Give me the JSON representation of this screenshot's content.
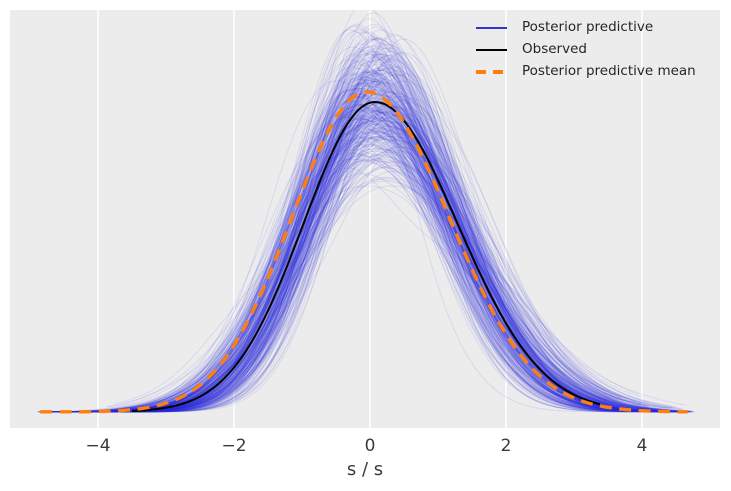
{
  "figure": {
    "kind": "posterior-predictive-check-plot",
    "background_color": "#ffffff",
    "plot_background_color": "#ececec",
    "gridline_color": "#ffffff",
    "tick_text_color": "#3b3b3b",
    "legend_text_color": "#262626",
    "xlabel": "s / s",
    "xtick_labels": [
      "−4",
      "−2",
      "0",
      "2",
      "4"
    ],
    "legend": [
      {
        "label": "Posterior predictive",
        "color": "#3434d0",
        "style": "solid"
      },
      {
        "label": "Observed",
        "color": "#000000",
        "style": "solid"
      },
      {
        "label": "Posterior predictive mean",
        "color": "#ff7f0e",
        "style": "dashed"
      }
    ]
  },
  "chart_data": {
    "type": "line",
    "title": "",
    "xlabel": "s / s",
    "ylabel": "",
    "xticks": [
      -4,
      -2,
      0,
      2,
      4
    ],
    "xlim": [
      -5.3,
      5.45
    ],
    "ylim": [
      0,
      0.52
    ],
    "yaxis_visible": false,
    "grid": "vertical-white-gridlines-only",
    "legend_position": "upper right",
    "legend_frame": false,
    "series": [
      {
        "name": "Posterior predictive",
        "role": "kde-ensemble",
        "color": "#2828d4",
        "line_alpha": 0.1,
        "linewidth": 1,
        "approx_n_lines": 380,
        "peak_density_mean": 0.405,
        "peak_density_range": [
          0.3,
          0.497
        ],
        "peak_location_mean": 0.05,
        "peak_location_jitter_sd": 0.17,
        "sd_base": 1.14,
        "sd_left_factor": 0.9,
        "sd_right_factor": 1.07,
        "x_start_range": [
          -4.9,
          -3.6
        ],
        "x_end_range": [
          3.4,
          4.8
        ]
      },
      {
        "name": "Observed",
        "role": "kde",
        "color": "#000000",
        "linewidth": 2,
        "x_range": [
          -3.5,
          3.4
        ],
        "split_gaussian_fit": {
          "mean": 0.07,
          "sd_left": 1.05,
          "sd_right": 1.22,
          "peak_density": 0.4
        },
        "points": [
          [
            -3.5,
            0.001
          ],
          [
            -3.0,
            0.006
          ],
          [
            -2.5,
            0.02
          ],
          [
            -2.0,
            0.057
          ],
          [
            -1.5,
            0.131
          ],
          [
            -1.0,
            0.238
          ],
          [
            -0.5,
            0.345
          ],
          [
            0.0,
            0.399
          ],
          [
            0.07,
            0.4
          ],
          [
            0.5,
            0.376
          ],
          [
            1.0,
            0.299
          ],
          [
            1.5,
            0.201
          ],
          [
            2.0,
            0.114
          ],
          [
            2.5,
            0.055
          ],
          [
            3.0,
            0.022
          ],
          [
            3.4,
            0.01
          ]
        ]
      },
      {
        "name": "Posterior predictive mean",
        "role": "kde-mean",
        "color": "#ff7f0e",
        "linestyle": "dashed",
        "dash_pattern": [
          12,
          7.5
        ],
        "linewidth": 3.4,
        "x_range": [
          -4.85,
          4.7
        ],
        "split_gaussian_fit": {
          "mean": -0.05,
          "sd_left": 1.1,
          "sd_right": 1.22,
          "peak_density": 0.413
        },
        "points": [
          [
            -4.85,
            0.0001
          ],
          [
            -4.5,
            0.0001
          ],
          [
            -4.0,
            0.0007
          ],
          [
            -3.5,
            0.003
          ],
          [
            -3.0,
            0.011
          ],
          [
            -2.5,
            0.035
          ],
          [
            -2.0,
            0.086
          ],
          [
            -1.5,
            0.173
          ],
          [
            -1.0,
            0.284
          ],
          [
            -0.5,
            0.38
          ],
          [
            -0.05,
            0.413
          ],
          [
            0.5,
            0.373
          ],
          [
            1.0,
            0.285
          ],
          [
            1.5,
            0.184
          ],
          [
            2.0,
            0.101
          ],
          [
            2.5,
            0.047
          ],
          [
            3.0,
            0.018
          ],
          [
            3.5,
            0.006
          ],
          [
            4.0,
            0.0017
          ],
          [
            4.5,
            0.0004
          ],
          [
            4.7,
            0.0002
          ]
        ]
      }
    ]
  }
}
